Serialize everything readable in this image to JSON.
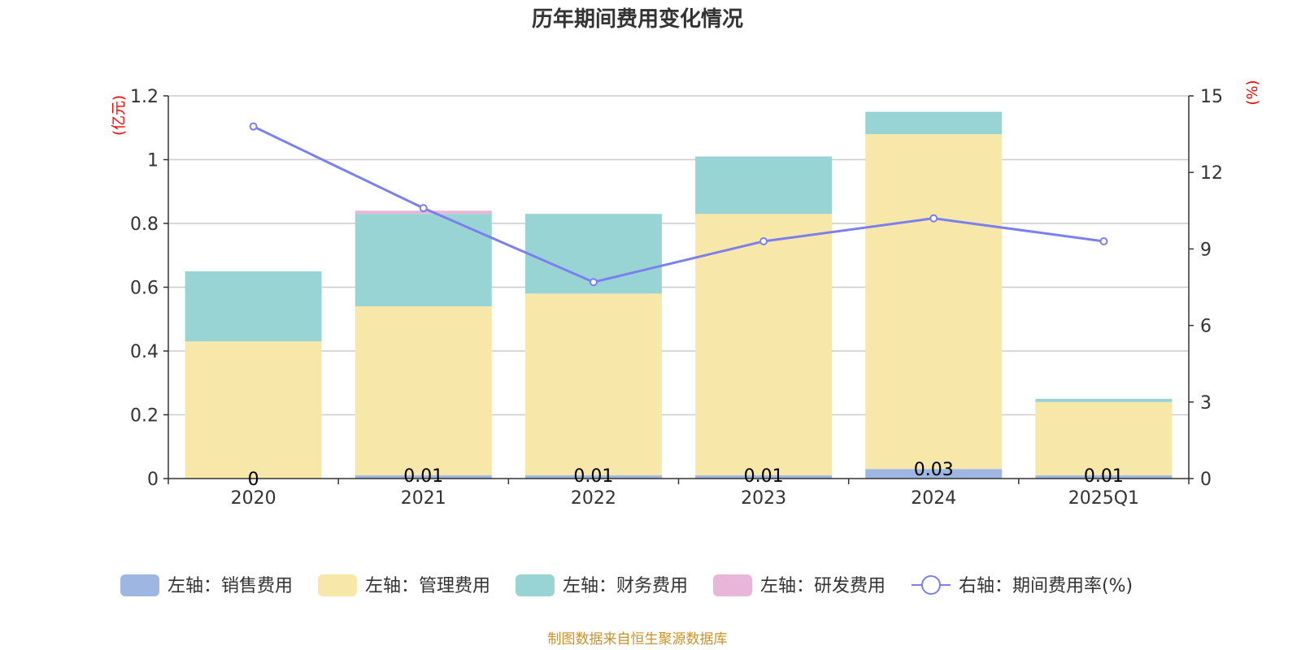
{
  "chart_data": {
    "type": "bar",
    "title": "历年期间费用变化情况",
    "categories": [
      "2020",
      "2021",
      "2022",
      "2023",
      "2024",
      "2025Q1"
    ],
    "left_axis": {
      "unit": "(亿元)",
      "min": 0,
      "max": 1.2,
      "ticks": [
        "0",
        "0.2",
        "0.4",
        "0.6",
        "0.8",
        "1",
        "1.2"
      ]
    },
    "right_axis": {
      "unit": "(%)",
      "min": 0,
      "max": 15,
      "ticks": [
        "0",
        "3",
        "6",
        "9",
        "12",
        "15"
      ]
    },
    "grid": true,
    "series": [
      {
        "name": "左轴：销售费用",
        "type": "bar",
        "color": "#9db6e2",
        "values": [
          0,
          0.01,
          0.01,
          0.01,
          0.03,
          0.01
        ],
        "labels": [
          "0",
          "0.01",
          "0.01",
          "0.01",
          "0.03",
          "0.01"
        ]
      },
      {
        "name": "左轴：管理费用",
        "type": "bar",
        "color": "#f7e7a8",
        "values": [
          0.43,
          0.53,
          0.57,
          0.82,
          1.05,
          0.23
        ]
      },
      {
        "name": "左轴：财务费用",
        "type": "bar",
        "color": "#99d4d4",
        "values": [
          0.22,
          0.29,
          0.25,
          0.18,
          0.07,
          0.01
        ]
      },
      {
        "name": "左轴：研发费用",
        "type": "bar",
        "color": "#e8b6d9",
        "values": [
          0,
          0.01,
          0,
          0,
          0,
          0
        ]
      },
      {
        "name": "右轴：期间费用率(%)",
        "type": "line",
        "color": "#7b7fef",
        "values": [
          13.8,
          10.6,
          7.7,
          9.3,
          10.2,
          9.3
        ]
      }
    ],
    "legend_position": "bottom",
    "source": "制图数据来自恒生聚源数据库"
  }
}
